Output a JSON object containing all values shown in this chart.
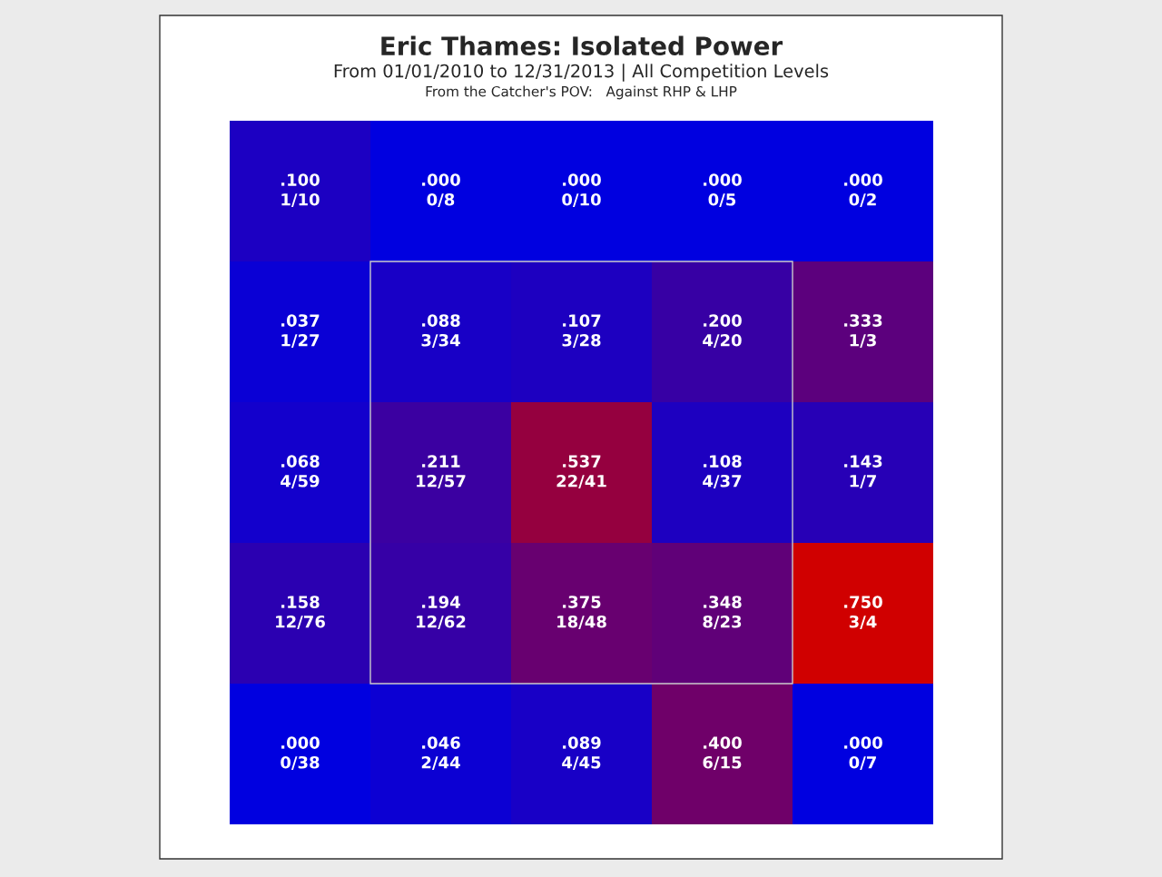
{
  "chart_data": {
    "type": "heatmap",
    "title": "Eric Thames: Isolated Power",
    "subtitle": "From 01/01/2010 to 12/31/2013 | All Competition Levels",
    "annotations": [
      "From the Catcher's POV:   Against RHP & LHP",
      "1/10",
      "0/8",
      "0/10",
      "0/5",
      "0/2",
      "1/27",
      "3/34",
      "3/28",
      "4/20",
      "1/3",
      "4/59",
      "12/57",
      "22/41",
      "4/37",
      "1/7",
      "12/76",
      "12/62",
      "18/48",
      "8/23",
      "3/4",
      "0/38",
      "2/44",
      "4/45",
      "6/15",
      "0/7"
    ],
    "categories": [
      null,
      null,
      null,
      null,
      null
    ],
    "y_categories": [
      null,
      null,
      null,
      null,
      null
    ],
    "cells": [
      [
        0.1,
        0.0,
        0.0,
        0.0,
        0.0
      ],
      [
        0.037,
        0.088,
        0.107,
        0.2,
        0.333
      ],
      [
        0.068,
        0.211,
        0.537,
        0.108,
        0.143
      ],
      [
        0.158,
        0.194,
        0.375,
        0.348,
        0.75
      ],
      [
        0.0,
        0.046,
        0.089,
        0.4,
        0.0
      ]
    ],
    "cell_labels": [
      [
        ".100",
        ".000",
        ".000",
        ".000",
        ".000"
      ],
      [
        ".037",
        ".088",
        ".107",
        ".200",
        ".333"
      ],
      [
        ".068",
        ".211",
        ".537",
        ".108",
        ".143"
      ],
      [
        ".158",
        ".194",
        ".375",
        ".348",
        ".750"
      ],
      [
        ".000",
        ".046",
        ".089",
        ".400",
        ".000"
      ]
    ]
  }
}
